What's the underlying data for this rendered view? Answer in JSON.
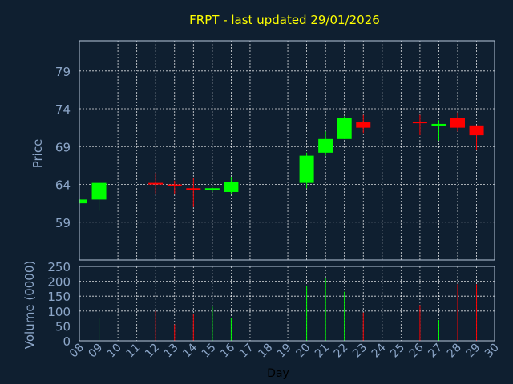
{
  "colors": {
    "background": "#0f1f30",
    "title": "#ffff00",
    "axis_text": "#8ca6c8",
    "up": "#00ff00",
    "down": "#ff0000",
    "grid": "#ffffff"
  },
  "chart_data": {
    "type": "candlestick",
    "title": "FRPT - last updated 29/01/2026",
    "xlabel": "Day",
    "ylabel": "Price",
    "volume_label": "Volume (0000)",
    "grid": true,
    "x_ticks": [
      "08",
      "09",
      "10",
      "11",
      "12",
      "13",
      "14",
      "15",
      "16",
      "17",
      "18",
      "19",
      "20",
      "21",
      "22",
      "23",
      "24",
      "25",
      "26",
      "27",
      "28",
      "29",
      "30"
    ],
    "price_ylim": [
      54,
      83
    ],
    "price_ticks": [
      59,
      64,
      69,
      74,
      79
    ],
    "volume_ylim": [
      0,
      250
    ],
    "volume_ticks": [
      0,
      50,
      100,
      150,
      200,
      250
    ],
    "candles": [
      {
        "day": "08",
        "open": 61.5,
        "close": 62.0,
        "high": 62.0,
        "low": 61.5,
        "volume": 0
      },
      {
        "day": "09",
        "open": 62.0,
        "close": 64.2,
        "high": 64.2,
        "low": 60.5,
        "volume": 78
      },
      {
        "day": "12",
        "open": 64.2,
        "close": 64.0,
        "high": 65.5,
        "low": 62.8,
        "volume": 100
      },
      {
        "day": "13",
        "open": 64.0,
        "close": 63.8,
        "high": 64.5,
        "low": 62.8,
        "volume": 55
      },
      {
        "day": "14",
        "open": 63.5,
        "close": 63.3,
        "high": 64.8,
        "low": 61.0,
        "volume": 90
      },
      {
        "day": "15",
        "open": 63.3,
        "close": 63.5,
        "high": 63.6,
        "low": 63.0,
        "volume": 115
      },
      {
        "day": "16",
        "open": 63.0,
        "close": 64.3,
        "high": 65.0,
        "low": 62.8,
        "volume": 78
      },
      {
        "day": "20",
        "open": 64.2,
        "close": 67.8,
        "high": 68.2,
        "low": 63.5,
        "volume": 185
      },
      {
        "day": "21",
        "open": 68.2,
        "close": 70.0,
        "high": 71.0,
        "low": 67.8,
        "volume": 210
      },
      {
        "day": "22",
        "open": 70.0,
        "close": 72.8,
        "high": 73.0,
        "low": 70.0,
        "volume": 165
      },
      {
        "day": "23",
        "open": 72.2,
        "close": 71.5,
        "high": 73.2,
        "low": 70.8,
        "volume": 95
      },
      {
        "day": "26",
        "open": 72.3,
        "close": 72.1,
        "high": 73.2,
        "low": 70.5,
        "volume": 120
      },
      {
        "day": "27",
        "open": 71.7,
        "close": 72.0,
        "high": 72.5,
        "low": 69.8,
        "volume": 70
      },
      {
        "day": "28",
        "open": 72.8,
        "close": 71.5,
        "high": 73.5,
        "low": 71.0,
        "volume": 190
      },
      {
        "day": "29",
        "open": 71.8,
        "close": 70.5,
        "high": 71.8,
        "low": 68.5,
        "volume": 190
      }
    ]
  }
}
